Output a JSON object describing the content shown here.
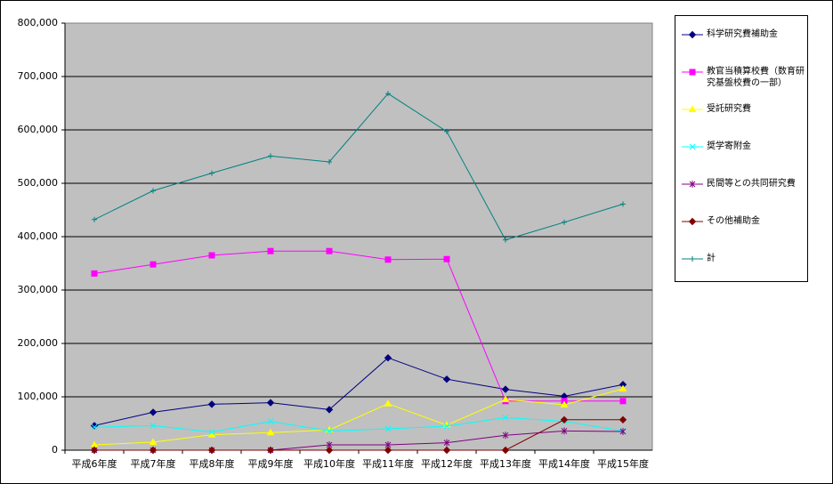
{
  "chart_data": {
    "type": "line",
    "categories": [
      "平成6年度",
      "平成7年度",
      "平成8年度",
      "平成9年度",
      "平成10年度",
      "平成11年度",
      "平成12年度",
      "平成13年度",
      "平成14年度",
      "平成15年度"
    ],
    "ylim": [
      0,
      800000
    ],
    "yticks": [
      0,
      {
        "value": 100000,
        "label": "100,000"
      },
      {
        "value": 200000,
        "label": "200,000"
      },
      {
        "value": 300000,
        "label": "300,000"
      },
      {
        "value": 400000,
        "label": "400,000"
      },
      {
        "value": 500000,
        "label": "500,000"
      },
      {
        "value": 600000,
        "label": "600,000"
      },
      {
        "value": 700000,
        "label": "700,000"
      },
      {
        "value": 800000,
        "label": "800,000"
      }
    ],
    "grid": true,
    "legend_position": "right",
    "series": [
      {
        "name": "科学研究費補助金",
        "color": "#000080",
        "marker": "diamond",
        "values": [
          46000,
          71000,
          86000,
          89000,
          76000,
          173000,
          133000,
          114000,
          101000,
          123000
        ]
      },
      {
        "name": "教官当積算校費（数育研究基盤校費の一部）",
        "color": "#ff00ff",
        "marker": "square",
        "values": [
          331000,
          348000,
          365000,
          373000,
          373000,
          357000,
          358000,
          92000,
          92000,
          92000
        ]
      },
      {
        "name": "受託研究費",
        "color": "#ffff00",
        "marker": "triangle",
        "values": [
          10000,
          15000,
          29000,
          33000,
          38000,
          87000,
          47000,
          95000,
          85000,
          115000
        ]
      },
      {
        "name": "奨学寄附金",
        "color": "#00ffff",
        "marker": "x",
        "values": [
          43000,
          46000,
          34000,
          54000,
          36000,
          40000,
          45000,
          61000,
          54000,
          36000
        ]
      },
      {
        "name": "民間等との共同研究費",
        "color": "#800080",
        "marker": "star",
        "values": [
          0,
          0,
          0,
          0,
          10000,
          10000,
          14000,
          28000,
          36000,
          35000
        ]
      },
      {
        "name": "その他補助金",
        "color": "#800000",
        "marker": "diamond",
        "values": [
          0,
          0,
          0,
          0,
          0,
          0,
          0,
          0,
          57000,
          57000
        ]
      },
      {
        "name": "計",
        "color": "#008080",
        "marker": "plus",
        "values": [
          432000,
          486000,
          519000,
          551000,
          540000,
          668000,
          597000,
          394000,
          427000,
          461000
        ]
      }
    ]
  }
}
